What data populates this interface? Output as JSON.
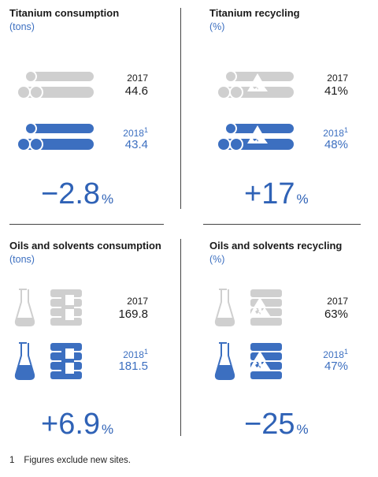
{
  "colors": {
    "grey_icon": "#cfcfcf",
    "blue_icon": "#3c6fc0",
    "change_blue": "#2f62b6"
  },
  "chart_data": [
    {
      "type": "table",
      "title": "Titanium consumption",
      "unit": "(tons)",
      "icon": "pipes-icon",
      "rows": [
        {
          "year": "2017",
          "footnote": "",
          "value": "44.6"
        },
        {
          "year": "2018",
          "footnote": "1",
          "value": "43.4"
        }
      ],
      "change": "−2.8",
      "change_unit": "%"
    },
    {
      "type": "table",
      "title": "Titanium recycling",
      "unit": "(%)",
      "icon": "pipes-recycle-icon",
      "rows": [
        {
          "year": "2017",
          "footnote": "",
          "value": "41%"
        },
        {
          "year": "2018",
          "footnote": "1",
          "value": "48%"
        }
      ],
      "change": "+17",
      "change_unit": "%"
    },
    {
      "type": "table",
      "title": "Oils and solvents consumption",
      "unit": "(tons)",
      "icon": "flask-barrel-icon",
      "rows": [
        {
          "year": "2017",
          "footnote": "",
          "value": "169.8"
        },
        {
          "year": "2018",
          "footnote": "1",
          "value": "181.5"
        }
      ],
      "change": "+6.9",
      "change_unit": "%"
    },
    {
      "type": "table",
      "title": "Oils and solvents recycling",
      "unit": "(%)",
      "icon": "flask-barrel-recycle-icon",
      "rows": [
        {
          "year": "2017",
          "footnote": "",
          "value": "63%"
        },
        {
          "year": "2018",
          "footnote": "1",
          "value": "47%"
        }
      ],
      "change": "−25",
      "change_unit": "%"
    }
  ],
  "footnote": {
    "number": "1",
    "text": "Figures exclude new sites."
  }
}
